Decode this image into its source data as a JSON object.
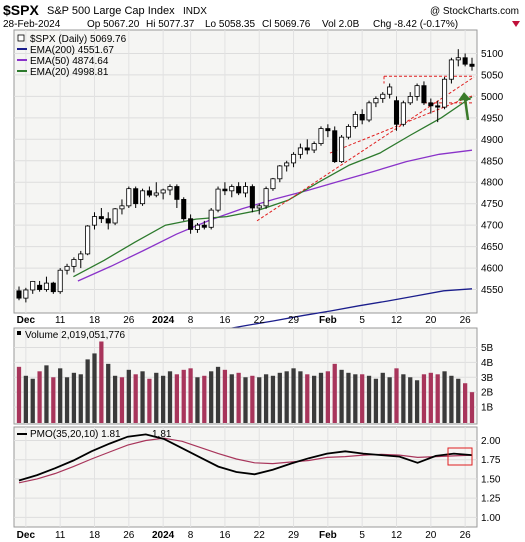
{
  "header": {
    "symbol": "$SPX",
    "name": "S&P 500 Large Cap Index",
    "exchange": "INDX",
    "watermark": "@ StockCharts.com",
    "quote": {
      "date": "28-Feb-2024",
      "open": "Op 5067.20",
      "high": "Hi 5077.37",
      "low": "Lo 5058.35",
      "close": "Cl 5069.76",
      "volume": "Vol 2.0B",
      "change": "Chg -8.42 (-0.17%)"
    }
  },
  "colors": {
    "up": "#ffffff",
    "down": "#000000",
    "volume_up": "#3a3a3a",
    "volume_down": "#a8355b",
    "ema200": "#1b1e8c",
    "ema50": "#8a33c9",
    "ema20": "#2d7a2d",
    "trend": "#e02020",
    "arrow": "#3a7a2a",
    "pmo_line": "#000000",
    "pmo_signal": "#a8355b",
    "panel_bg": "#f5f5f3"
  },
  "chart_data": [
    {
      "type": "candlestick",
      "title": "$SPX (Daily) 5069.76",
      "x_labels": [
        "Dec",
        "11",
        "18",
        "26",
        "2024",
        "8",
        "16",
        "22",
        "29",
        "Feb",
        "5",
        "12",
        "20",
        "26"
      ],
      "ylim": [
        4500,
        5150
      ],
      "y_ticks": [
        4550,
        4600,
        4650,
        4700,
        4750,
        4800,
        4850,
        4900,
        4950,
        5000,
        5050,
        5100
      ],
      "legend": [
        {
          "key": "spx",
          "label": "$SPX (Daily) 5069.76"
        },
        {
          "key": "ema200",
          "label": "EMA(200) 4551.67"
        },
        {
          "key": "ema50",
          "label": "EMA(50) 4874.64"
        },
        {
          "key": "ema20",
          "label": "EMA(20) 4998.81"
        }
      ],
      "ohlc": [
        [
          4547,
          4557,
          4525,
          4530
        ],
        [
          4530,
          4554,
          4520,
          4549
        ],
        [
          4549,
          4570,
          4540,
          4569
        ],
        [
          4560,
          4570,
          4545,
          4550
        ],
        [
          4550,
          4580,
          4545,
          4565
        ],
        [
          4565,
          4568,
          4540,
          4545
        ],
        [
          4545,
          4600,
          4540,
          4595
        ],
        [
          4595,
          4610,
          4585,
          4604
        ],
        [
          4604,
          4625,
          4590,
          4620
        ],
        [
          4620,
          4640,
          4600,
          4633
        ],
        [
          4633,
          4700,
          4630,
          4698
        ],
        [
          4700,
          4730,
          4690,
          4720
        ],
        [
          4720,
          4740,
          4705,
          4715
        ],
        [
          4715,
          4730,
          4690,
          4705
        ],
        [
          4705,
          4740,
          4700,
          4738
        ],
        [
          4738,
          4760,
          4725,
          4745
        ],
        [
          4745,
          4790,
          4740,
          4785
        ],
        [
          4785,
          4790,
          4740,
          4750
        ],
        [
          4750,
          4785,
          4745,
          4780
        ],
        [
          4780,
          4790,
          4765,
          4770
        ],
        [
          4770,
          4800,
          4765,
          4775
        ],
        [
          4775,
          4785,
          4760,
          4782
        ],
        [
          4782,
          4795,
          4770,
          4790
        ],
        [
          4790,
          4795,
          4740,
          4760
        ],
        [
          4760,
          4765,
          4710,
          4715
        ],
        [
          4715,
          4725,
          4680,
          4690
        ],
        [
          4690,
          4705,
          4682,
          4700
        ],
        [
          4700,
          4710,
          4690,
          4695
        ],
        [
          4695,
          4740,
          4690,
          4735
        ],
        [
          4735,
          4790,
          4730,
          4784
        ],
        [
          4784,
          4800,
          4770,
          4780
        ],
        [
          4780,
          4795,
          4765,
          4790
        ],
        [
          4790,
          4800,
          4770,
          4775
        ],
        [
          4775,
          4800,
          4765,
          4790
        ],
        [
          4790,
          4795,
          4730,
          4740
        ],
        [
          4740,
          4750,
          4725,
          4745
        ],
        [
          4745,
          4790,
          4738,
          4785
        ],
        [
          4785,
          4810,
          4780,
          4808
        ],
        [
          4808,
          4840,
          4800,
          4838
        ],
        [
          4838,
          4850,
          4825,
          4845
        ],
        [
          4845,
          4870,
          4835,
          4865
        ],
        [
          4865,
          4890,
          4855,
          4880
        ],
        [
          4880,
          4900,
          4865,
          4875
        ],
        [
          4875,
          4895,
          4868,
          4890
        ],
        [
          4890,
          4930,
          4885,
          4925
        ],
        [
          4925,
          4935,
          4905,
          4920
        ],
        [
          4920,
          4930,
          4845,
          4848
        ],
        [
          4848,
          4910,
          4845,
          4905
        ],
        [
          4905,
          4935,
          4900,
          4930
        ],
        [
          4930,
          4965,
          4925,
          4958
        ],
        [
          4958,
          4970,
          4935,
          4945
        ],
        [
          4945,
          4990,
          4940,
          4985
        ],
        [
          4985,
          5000,
          4975,
          4995
        ],
        [
          4995,
          5010,
          4985,
          5005
        ],
        [
          5005,
          5030,
          4995,
          5022
        ],
        [
          4990,
          5000,
          4920,
          4935
        ],
        [
          4935,
          4990,
          4930,
          4985
        ],
        [
          4985,
          5010,
          4980,
          5000
        ],
        [
          5000,
          5030,
          4990,
          5025
        ],
        [
          5025,
          5035,
          4980,
          4985
        ],
        [
          4985,
          4995,
          4960,
          4978
        ],
        [
          4978,
          4990,
          4940,
          4975
        ],
        [
          4975,
          5045,
          4970,
          5040
        ],
        [
          5040,
          5090,
          5030,
          5085
        ],
        [
          5085,
          5110,
          5070,
          5090
        ],
        [
          5090,
          5100,
          5070,
          5075
        ],
        [
          5075,
          5090,
          5060,
          5070
        ]
      ],
      "ema200": [
        4420,
        4431,
        4443,
        4454,
        4466,
        4477,
        4489,
        4500,
        4512,
        4523,
        4535,
        4547,
        4551.67
      ],
      "ema50": [
        4570,
        4604,
        4641,
        4679,
        4711,
        4738,
        4761,
        4781,
        4803,
        4825,
        4848,
        4865,
        4874.64
      ],
      "ema20": [
        4580,
        4618,
        4660,
        4700,
        4714,
        4720,
        4734,
        4758,
        4800,
        4840,
        4868,
        4910,
        4950,
        4998.81
      ]
    },
    {
      "type": "bar",
      "title": "Volume 2,019,051,776",
      "ylim": [
        0,
        5500000000
      ],
      "y_ticks": [
        "1B",
        "2B",
        "3B",
        "4B",
        "5B"
      ],
      "values_billions": [
        3.7,
        3.1,
        2.9,
        3.4,
        3.8,
        3.0,
        3.6,
        3.0,
        3.3,
        3.2,
        4.2,
        4.6,
        5.4,
        3.9,
        3.1,
        3.0,
        3.5,
        3.2,
        3.4,
        2.9,
        3.3,
        3.1,
        3.4,
        3.2,
        3.5,
        3.6,
        3.0,
        3.1,
        3.4,
        3.7,
        3.5,
        3.2,
        3.3,
        3.0,
        3.1,
        3.0,
        3.2,
        3.1,
        3.3,
        3.4,
        3.6,
        3.4,
        3.2,
        3.1,
        3.3,
        3.4,
        3.9,
        3.5,
        3.3,
        3.2,
        3.2,
        3.1,
        2.9,
        3.3,
        3.0,
        3.6,
        3.2,
        3.0,
        2.8,
        3.2,
        3.3,
        3.2,
        3.4,
        3.1,
        2.9,
        2.6,
        2.0
      ],
      "up": [
        0,
        1,
        1,
        0,
        1,
        0,
        1,
        1,
        1,
        1,
        1,
        1,
        0,
        1,
        1,
        0,
        1,
        0,
        1,
        0,
        1,
        1,
        1,
        0,
        0,
        0,
        1,
        0,
        1,
        1,
        0,
        1,
        0,
        1,
        0,
        1,
        1,
        1,
        1,
        1,
        1,
        1,
        0,
        1,
        1,
        0,
        0,
        1,
        1,
        1,
        0,
        1,
        1,
        1,
        1,
        0,
        1,
        1,
        1,
        0,
        0,
        0,
        1,
        1,
        1,
        0,
        0
      ]
    },
    {
      "type": "line",
      "title": "PMO(35,20,10) 1.81, 1.81",
      "ylim": [
        0.9,
        2.15
      ],
      "y_ticks": [
        "1.00",
        "1.25",
        "1.50",
        "1.75",
        "2.00"
      ],
      "series": [
        {
          "name": "PMO(35,20,10) 1.81",
          "values": [
            1.48,
            1.55,
            1.64,
            1.74,
            1.86,
            1.96,
            2.05,
            2.08,
            2.02,
            1.9,
            1.78,
            1.66,
            1.59,
            1.56,
            1.62,
            1.7,
            1.77,
            1.83,
            1.86,
            1.83,
            1.81,
            1.79,
            1.71,
            1.8,
            1.83,
            1.81
          ]
        },
        {
          "name": "1.81",
          "values": [
            1.45,
            1.5,
            1.57,
            1.66,
            1.76,
            1.85,
            1.94,
            2.0,
            2.03,
            1.99,
            1.91,
            1.83,
            1.76,
            1.71,
            1.7,
            1.72,
            1.74,
            1.78,
            1.79,
            1.81,
            1.82,
            1.81,
            1.78,
            1.79,
            1.8,
            1.81
          ]
        }
      ]
    }
  ]
}
